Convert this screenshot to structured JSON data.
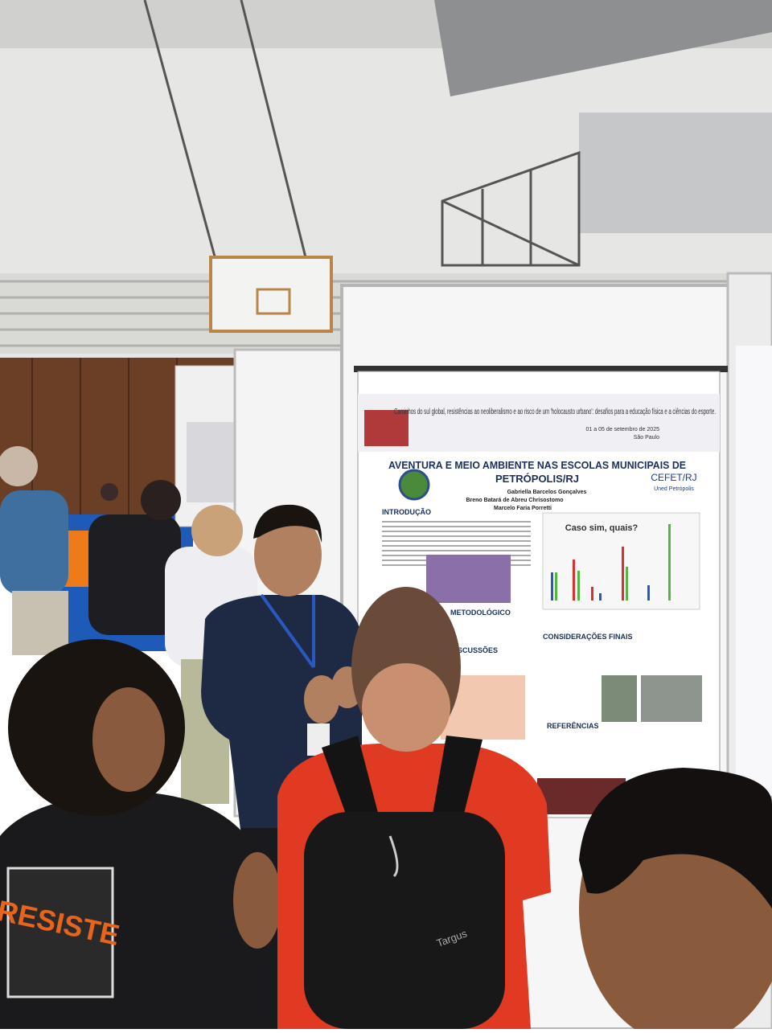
{
  "poster": {
    "event_title": "Caminhos do sul global, resistências ao neoliberalismo e ao risco de um 'holocausto urbano': desafios para a educação física e a ciências do esporte.",
    "event_dates": "01 a 05 de setembro de 2025",
    "event_city": "São Paulo",
    "title_line1": "AVENTURA E MEIO AMBIENTE NAS ESCOLAS MUNICIPAIS DE",
    "title_line2": "PETRÓPOLIS/RJ",
    "authors": [
      "Gabriella Barcelos Gonçalves",
      "Breno Batará de Abreu Chrisostomo",
      "Marcelo Faria Porretti"
    ],
    "institution": "CEFET/RJ",
    "campus": "Uned Petrópolis",
    "sections": [
      "INTRODUÇÃO",
      "METODOLÓGICO",
      "DISCUSSÕES",
      "CONSIDERAÇÕES FINAIS",
      "REFERÊNCIAS"
    ],
    "chart_title": "Caso sim, quais?"
  },
  "backpack_brand": "Targus",
  "shirt_print": "RESISTE"
}
